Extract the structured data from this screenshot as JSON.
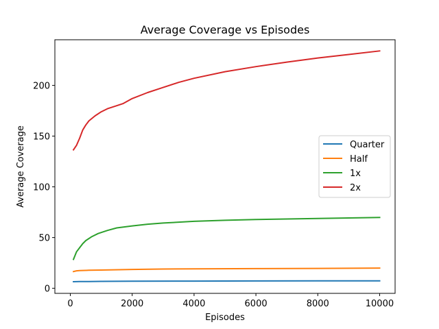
{
  "chart_data": {
    "type": "line",
    "title": "Average Coverage vs Episodes",
    "xlabel": "Episodes",
    "ylabel": "Average Coverage",
    "xlim": [
      -500,
      10500
    ],
    "ylim": [
      -5,
      245
    ],
    "xticks": [
      0,
      2000,
      4000,
      6000,
      8000,
      10000
    ],
    "yticks": [
      0,
      50,
      100,
      150,
      200
    ],
    "grid": false,
    "legend_position": "right",
    "series": [
      {
        "name": "Quarter",
        "color": "#1f77b4",
        "points": [
          [
            100,
            6.5
          ],
          [
            300,
            6.6
          ],
          [
            600,
            6.7
          ],
          [
            1000,
            6.8
          ],
          [
            2000,
            7.0
          ],
          [
            4000,
            7.1
          ],
          [
            6000,
            7.2
          ],
          [
            8000,
            7.3
          ],
          [
            10000,
            7.3
          ]
        ]
      },
      {
        "name": "Half",
        "color": "#ff7f0e",
        "points": [
          [
            100,
            16.5
          ],
          [
            200,
            17.2
          ],
          [
            300,
            17.5
          ],
          [
            600,
            17.8
          ],
          [
            1000,
            18.0
          ],
          [
            2000,
            18.6
          ],
          [
            3000,
            19.0
          ],
          [
            4000,
            19.2
          ],
          [
            6000,
            19.4
          ],
          [
            8000,
            19.6
          ],
          [
            10000,
            19.9
          ]
        ]
      },
      {
        "name": "1x",
        "color": "#2ca02c",
        "points": [
          [
            100,
            28.5
          ],
          [
            200,
            36
          ],
          [
            300,
            40
          ],
          [
            400,
            44
          ],
          [
            500,
            47
          ],
          [
            700,
            51
          ],
          [
            900,
            54
          ],
          [
            1200,
            57
          ],
          [
            1500,
            59.5
          ],
          [
            2000,
            61.5
          ],
          [
            2500,
            63.2
          ],
          [
            3000,
            64.3
          ],
          [
            4000,
            66
          ],
          [
            5000,
            67
          ],
          [
            6000,
            67.8
          ],
          [
            7000,
            68.3
          ],
          [
            8000,
            68.8
          ],
          [
            9000,
            69.3
          ],
          [
            10000,
            69.8
          ]
        ]
      },
      {
        "name": "2x",
        "color": "#d62728",
        "points": [
          [
            100,
            136.5
          ],
          [
            200,
            141
          ],
          [
            300,
            148
          ],
          [
            400,
            156
          ],
          [
            500,
            161
          ],
          [
            600,
            165
          ],
          [
            800,
            170
          ],
          [
            1000,
            174
          ],
          [
            1200,
            177
          ],
          [
            1500,
            180
          ],
          [
            1700,
            182
          ],
          [
            2000,
            187
          ],
          [
            2500,
            193
          ],
          [
            3000,
            198
          ],
          [
            3500,
            203
          ],
          [
            4000,
            207
          ],
          [
            5000,
            213.5
          ],
          [
            6000,
            218.5
          ],
          [
            7000,
            223
          ],
          [
            8000,
            227
          ],
          [
            9000,
            230.5
          ],
          [
            10000,
            234
          ]
        ]
      }
    ]
  }
}
